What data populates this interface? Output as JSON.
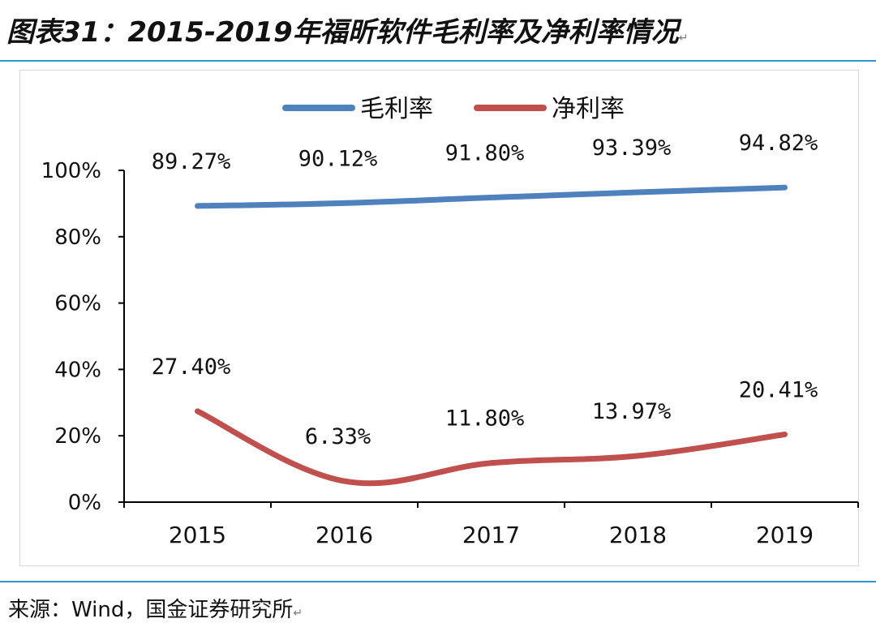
{
  "figure": {
    "title": "图表31：2015-2019年福昕软件毛利率及净利率情况",
    "source": "来源：Wind，国金证券研究所"
  },
  "chart_data": {
    "type": "line",
    "categories": [
      "2015",
      "2016",
      "2017",
      "2018",
      "2019"
    ],
    "series": [
      {
        "name": "毛利率",
        "color": "#4f81bd",
        "values": [
          89.27,
          90.12,
          91.8,
          93.39,
          94.82
        ],
        "labels": [
          "89.27%",
          "90.12%",
          "91.80%",
          "93.39%",
          "94.82%"
        ]
      },
      {
        "name": "净利率",
        "color": "#c0504d",
        "values": [
          27.4,
          6.33,
          11.8,
          13.97,
          20.41
        ],
        "labels": [
          "27.40%",
          "6.33%",
          "11.80%",
          "13.97%",
          "20.41%"
        ]
      }
    ],
    "yticks": [
      "0%",
      "20%",
      "40%",
      "60%",
      "80%",
      "100%"
    ],
    "ylim": [
      0,
      100
    ],
    "grid": false,
    "legend_position": "top"
  }
}
